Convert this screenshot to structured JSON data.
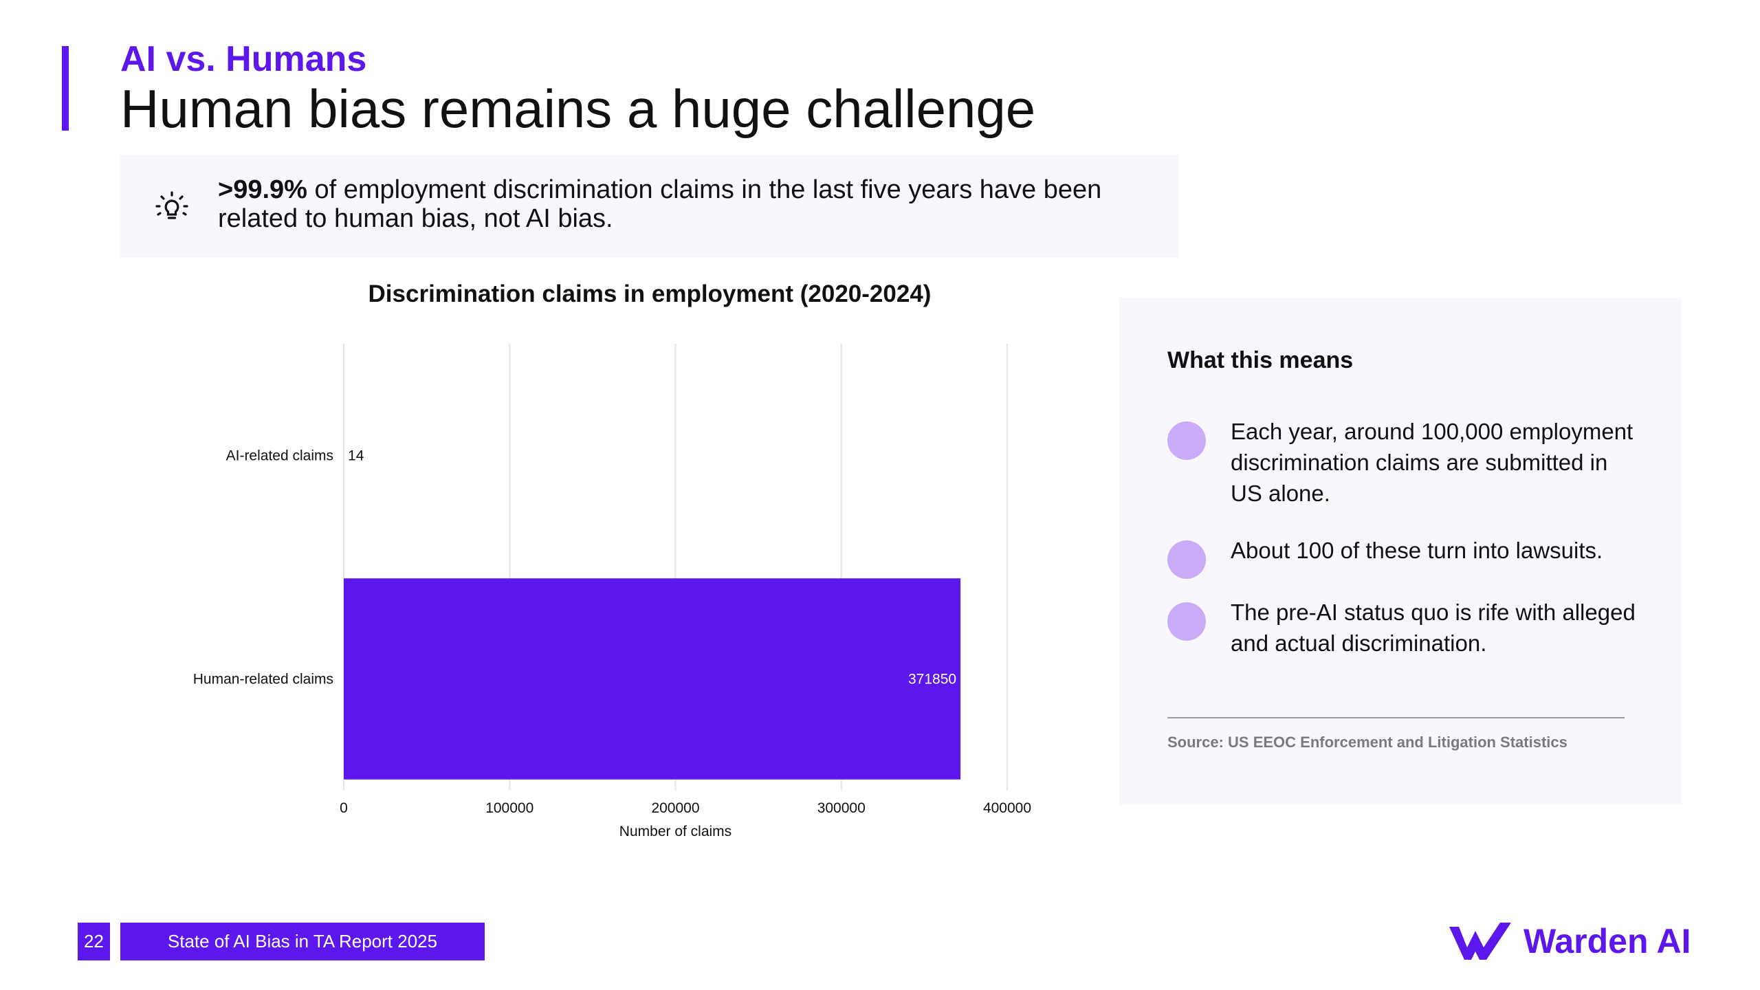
{
  "header": {
    "eyebrow": "AI vs. Humans",
    "title": "Human bias remains a huge challenge"
  },
  "callout": {
    "icon": "lightbulb-icon",
    "highlight": ">99.9%",
    "text": " of employment discrimination claims in the last five years have been related to human bias, not AI bias."
  },
  "chart_data": {
    "type": "bar",
    "orientation": "horizontal",
    "title": "Discrimination claims in employment (2020-2024)",
    "categories": [
      "AI-related claims",
      "Human-related claims"
    ],
    "values": [
      14,
      371850
    ],
    "value_labels": [
      "14",
      "371850"
    ],
    "xlabel": "Number of claims",
    "ylabel": "",
    "xlim": [
      0,
      400000
    ],
    "xticks": [
      0,
      100000,
      200000,
      300000,
      400000
    ],
    "xtick_labels": [
      "0",
      "100000",
      "200000",
      "300000",
      "400000"
    ],
    "grid": true,
    "bar_color": "#5c17ec"
  },
  "side_panel": {
    "title": "What this means",
    "points": [
      "Each year, around 100,000 employment discrimination claims are submitted in US alone.",
      "About 100 of these turn into lawsuits.",
      "The pre-AI status quo is rife with alleged and actual discrimination."
    ],
    "source": "Source: US EEOC Enforcement and Litigation Statistics"
  },
  "footer": {
    "page_number": "22",
    "report_title": "State of AI Bias in TA Report 2025",
    "brand": "Warden AI"
  },
  "colors": {
    "accent": "#5c17ec",
    "dot": "#c9abf7",
    "panel_bg": "#f8f7fd"
  }
}
